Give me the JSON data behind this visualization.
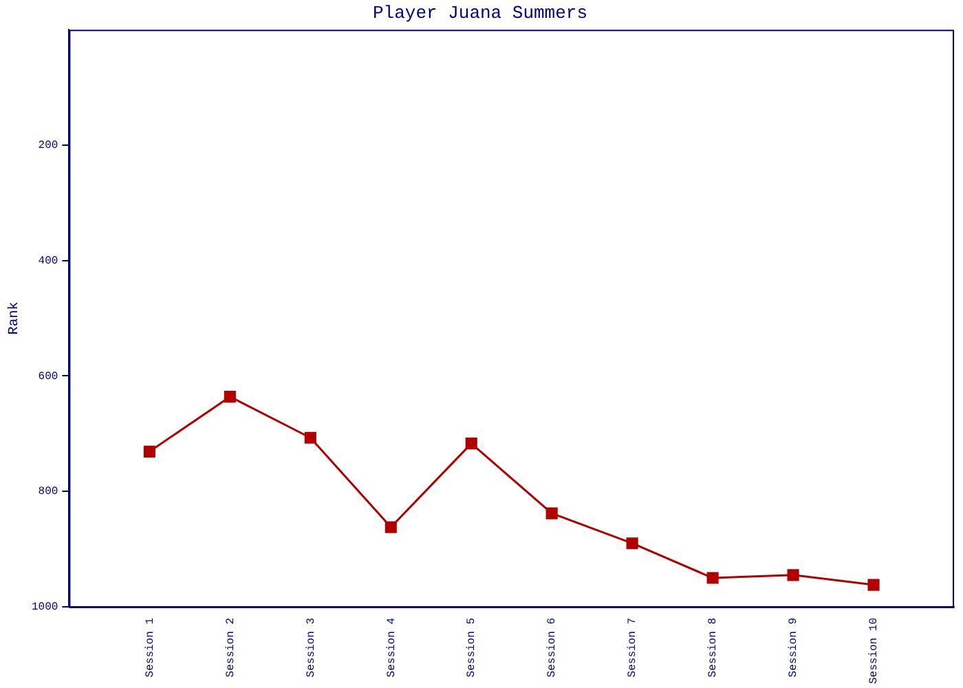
{
  "chart_data": {
    "type": "line",
    "title": "Player Juana Summers",
    "ylabel": "Rank",
    "categories": [
      "Session 1",
      "Session 2",
      "Session 3",
      "Session 4",
      "Session 5",
      "Session 6",
      "Session 7",
      "Session 8",
      "Session 9",
      "Session 10"
    ],
    "series": [
      {
        "color": "#b00000",
        "values": [
          731,
          636,
          707,
          862,
          717,
          838,
          890,
          950,
          945,
          962
        ]
      }
    ],
    "ylim": [
      1000,
      0
    ],
    "yticks": [
      200,
      400,
      600,
      800,
      1000
    ],
    "grid": false,
    "legend": false,
    "marker": "square",
    "line_style": "solid"
  }
}
